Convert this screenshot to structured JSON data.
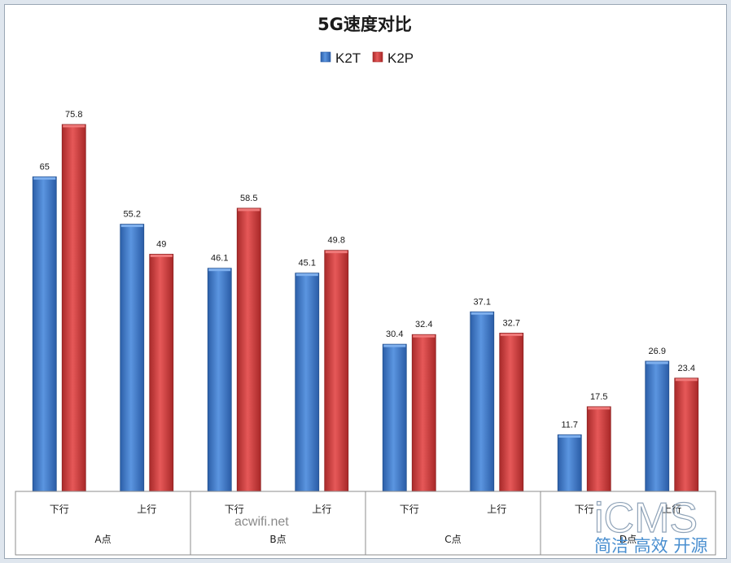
{
  "chart_data": {
    "type": "bar",
    "title": "5G速度对比",
    "legend_position": "top",
    "ylim": [
      0,
      80
    ],
    "grid": false,
    "categories": [
      {
        "sub": "下行",
        "group": "A点"
      },
      {
        "sub": "上行",
        "group": "A点"
      },
      {
        "sub": "下行",
        "group": "B点"
      },
      {
        "sub": "上行",
        "group": "B点"
      },
      {
        "sub": "下行",
        "group": "C点"
      },
      {
        "sub": "上行",
        "group": "C点"
      },
      {
        "sub": "下行",
        "group": "D点"
      },
      {
        "sub": "上行",
        "group": "D点"
      }
    ],
    "groups": [
      "A点",
      "B点",
      "C点",
      "D点"
    ],
    "series": [
      {
        "name": "K2T",
        "color": "#3a78c8",
        "values": [
          65,
          55.2,
          46.1,
          45.1,
          30.4,
          37.1,
          11.7,
          26.9
        ]
      },
      {
        "name": "K2P",
        "color": "#d23b3b",
        "values": [
          75.8,
          49,
          58.5,
          49.8,
          32.4,
          32.7,
          17.5,
          23.4
        ]
      }
    ]
  },
  "watermarks": {
    "site": "acwifi.net",
    "logo": "iCMS",
    "logo_tagline": "简洁 高效 开源"
  }
}
